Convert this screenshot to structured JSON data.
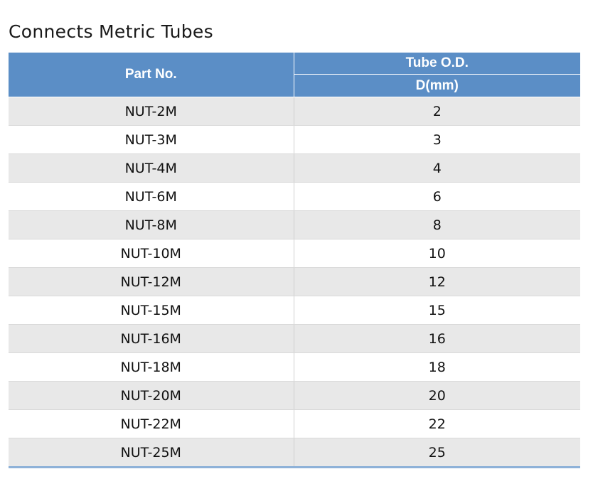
{
  "title": "Connects Metric Tubes",
  "table": {
    "header": {
      "part_no": "Part No.",
      "tube_od": "Tube O.D.",
      "d_mm": "D(mm)"
    },
    "rows": [
      {
        "part": "NUT-2M",
        "d": "2"
      },
      {
        "part": "NUT-3M",
        "d": "3"
      },
      {
        "part": "NUT-4M",
        "d": "4"
      },
      {
        "part": "NUT-6M",
        "d": "6"
      },
      {
        "part": "NUT-8M",
        "d": "8"
      },
      {
        "part": "NUT-10M",
        "d": "10"
      },
      {
        "part": "NUT-12M",
        "d": "12"
      },
      {
        "part": "NUT-15M",
        "d": "15"
      },
      {
        "part": "NUT-16M",
        "d": "16"
      },
      {
        "part": "NUT-18M",
        "d": "18"
      },
      {
        "part": "NUT-20M",
        "d": "20"
      },
      {
        "part": "NUT-22M",
        "d": "22"
      },
      {
        "part": "NUT-25M",
        "d": "25"
      }
    ]
  },
  "colors": {
    "header_bg": "#5b8ec6",
    "header_text": "#ffffff",
    "row_shaded": "#e8e8e8",
    "row_plain": "#ffffff",
    "bottom_rule": "#8eb1d8"
  }
}
